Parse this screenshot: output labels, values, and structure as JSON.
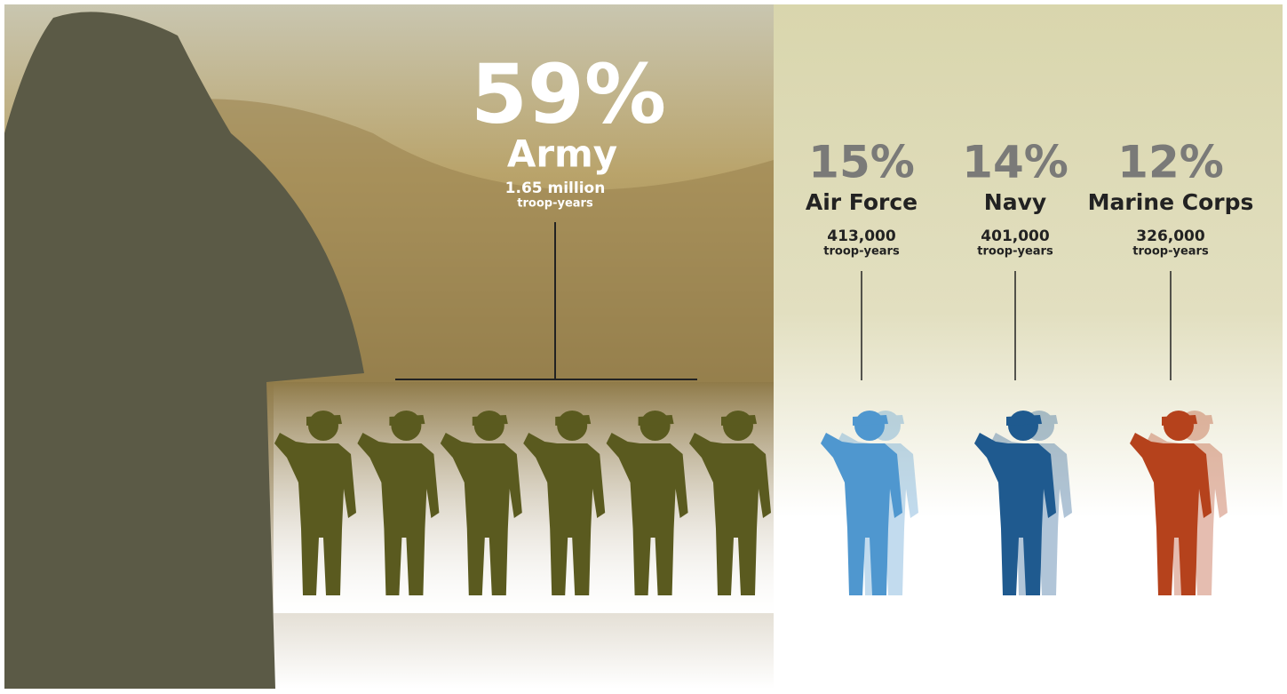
{
  "chart_data": {
    "type": "pictogram",
    "categories": [
      "Army",
      "Air Force",
      "Navy",
      "Marine Corps"
    ],
    "values": [
      59,
      15,
      14,
      12
    ],
    "value_labels": [
      "59%",
      "15%",
      "14%",
      "12%"
    ],
    "amounts": [
      1650000,
      413000,
      401000,
      326000
    ],
    "amount_labels": [
      "1.65 million",
      "413,000",
      "401,000",
      "326,000"
    ],
    "unit": "troop-years",
    "colors": [
      "#5a5a1f",
      "#4f97cf",
      "#1f5a8f",
      "#b5421c"
    ]
  }
}
